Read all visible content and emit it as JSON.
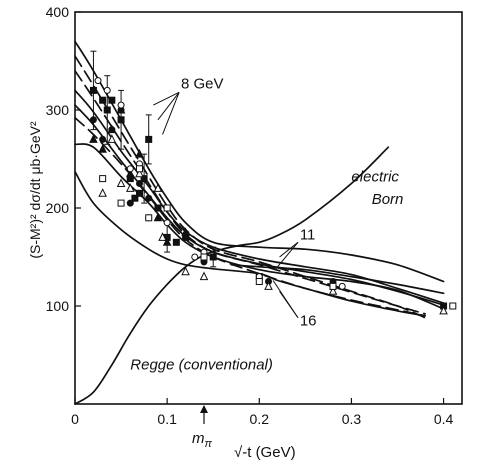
{
  "chart_data": {
    "type": "line",
    "title": "",
    "xlabel": "√-t (GeV)",
    "ylabel": "(S-M²)² dσ/dt  μb·GeV²",
    "xlim": [
      0,
      0.42
    ],
    "ylim": [
      0,
      400
    ],
    "x_ticks": [
      {
        "value": 0,
        "label": "0"
      },
      {
        "value": 0.1,
        "label": "0.1"
      },
      {
        "value": 0.2,
        "label": "0.2"
      },
      {
        "value": 0.3,
        "label": "0.3"
      },
      {
        "value": 0.4,
        "label": "0.4"
      }
    ],
    "y_ticks": [
      {
        "value": 100,
        "label": "100"
      },
      {
        "value": 200,
        "label": "200"
      },
      {
        "value": 300,
        "label": "300"
      },
      {
        "value": 400,
        "label": "400"
      }
    ],
    "grid": false,
    "mpi_marker": {
      "x": 0.14,
      "label": "m",
      "subscript": "π"
    },
    "annotations": [
      {
        "text": "8 GeV",
        "x": 0.115,
        "y": 322
      },
      {
        "text": "11",
        "x": 0.244,
        "y": 168
      },
      {
        "text": "16",
        "x": 0.244,
        "y": 80
      },
      {
        "text": "electric",
        "x": 0.3,
        "y": 227
      },
      {
        "text": "Born",
        "x": 0.322,
        "y": 204
      },
      {
        "text": "Regge  (conventional)",
        "x": 0.06,
        "y": 35
      }
    ],
    "series": [
      {
        "style": "solid",
        "x": [
          0,
          0.02,
          0.05,
          0.08,
          0.1,
          0.12,
          0.15,
          0.2,
          0.25,
          0.3,
          0.35,
          0.4
        ],
        "y": [
          370,
          340,
          290,
          240,
          210,
          185,
          165,
          160,
          158,
          152,
          142,
          125
        ]
      },
      {
        "style": "dashed",
        "x": [
          0,
          0.02,
          0.05,
          0.08,
          0.1,
          0.12,
          0.15,
          0.2,
          0.25,
          0.3,
          0.35,
          0.38
        ],
        "y": [
          355,
          325,
          278,
          232,
          202,
          178,
          158,
          145,
          130,
          115,
          100,
          88
        ]
      },
      {
        "style": "dashed",
        "x": [
          0,
          0.02,
          0.05,
          0.08,
          0.1,
          0.12,
          0.15,
          0.2,
          0.25,
          0.3,
          0.35,
          0.38
        ],
        "y": [
          340,
          312,
          268,
          225,
          196,
          173,
          155,
          142,
          128,
          114,
          100,
          92
        ]
      },
      {
        "style": "solid",
        "x": [
          0,
          0.02,
          0.05,
          0.08,
          0.1,
          0.12,
          0.15,
          0.2,
          0.25,
          0.3,
          0.35,
          0.4
        ],
        "y": [
          320,
          298,
          258,
          222,
          196,
          176,
          160,
          148,
          140,
          132,
          118,
          103
        ]
      },
      {
        "style": "solid",
        "x": [
          0,
          0.02,
          0.05,
          0.08,
          0.1,
          0.12,
          0.15,
          0.2,
          0.25,
          0.3,
          0.35,
          0.4
        ],
        "y": [
          305,
          285,
          248,
          213,
          190,
          171,
          155,
          143,
          135,
          127,
          115,
          101
        ]
      },
      {
        "style": "dashed",
        "x": [
          0,
          0.02,
          0.05,
          0.08,
          0.1,
          0.12,
          0.15,
          0.2,
          0.25,
          0.3,
          0.35,
          0.38
        ],
        "y": [
          292,
          275,
          245,
          212,
          188,
          168,
          150,
          133,
          118,
          106,
          96,
          90
        ]
      },
      {
        "style": "solid",
        "x": [
          0,
          0.02,
          0.05,
          0.08,
          0.1,
          0.12,
          0.15,
          0.2,
          0.25,
          0.3,
          0.35,
          0.4
        ],
        "y": [
          265,
          262,
          232,
          205,
          183,
          165,
          150,
          137,
          130,
          125,
          116,
          97
        ]
      },
      {
        "style": "solid",
        "x": [
          0,
          0.02,
          0.05,
          0.08,
          0.1,
          0.12,
          0.15,
          0.2,
          0.22,
          0.25,
          0.3,
          0.35,
          0.38
        ],
        "y": [
          237,
          205,
          178,
          158,
          148,
          142,
          138,
          133,
          126,
          118,
          105,
          95,
          90
        ]
      },
      {
        "style": "solid",
        "x": [
          0.17,
          0.2,
          0.25,
          0.3,
          0.35,
          0.4
        ],
        "y": [
          142,
          140,
          137,
          130,
          122,
          113
        ]
      },
      {
        "style": "solid",
        "x": [
          0,
          0.02,
          0.04,
          0.06,
          0.08,
          0.1,
          0.12,
          0.14,
          0.16,
          0.18,
          0.2,
          0.22,
          0.25,
          0.3,
          0.34
        ],
        "y": [
          0,
          12,
          40,
          72,
          100,
          122,
          140,
          152,
          158,
          162,
          165,
          172,
          188,
          225,
          262
        ]
      }
    ],
    "points": [
      {
        "marker": "filled-square",
        "x": [
          0.02,
          0.03,
          0.035,
          0.04,
          0.05,
          0.06,
          0.065,
          0.07,
          0.075,
          0.08,
          0.09,
          0.1,
          0.11,
          0.12,
          0.15,
          0.2,
          0.28,
          0.4
        ],
        "y": [
          320,
          310,
          300,
          310,
          290,
          230,
          210,
          215,
          230,
          270,
          200,
          170,
          165,
          170,
          150,
          130,
          120,
          100
        ]
      },
      {
        "marker": "filled-circle",
        "x": [
          0.02,
          0.03,
          0.04,
          0.05,
          0.06,
          0.07,
          0.08,
          0.09,
          0.14,
          0.21,
          0.28
        ],
        "y": [
          290,
          270,
          280,
          300,
          205,
          225,
          210,
          200,
          145,
          125,
          125
        ]
      },
      {
        "marker": "filled-triangle",
        "x": [
          0.02,
          0.03,
          0.04,
          0.05,
          0.06,
          0.07,
          0.09,
          0.1,
          0.12
        ],
        "y": [
          270,
          260,
          280,
          300,
          235,
          255,
          190,
          165,
          175
        ]
      },
      {
        "marker": "open-circle",
        "x": [
          0.025,
          0.035,
          0.05,
          0.06,
          0.07,
          0.08,
          0.1,
          0.13,
          0.14,
          0.2,
          0.29,
          0.41
        ],
        "y": [
          330,
          320,
          305,
          240,
          245,
          190,
          185,
          150,
          155,
          130,
          120,
          100
        ]
      },
      {
        "marker": "open-triangle",
        "x": [
          0.03,
          0.04,
          0.05,
          0.06,
          0.07,
          0.09,
          0.095,
          0.12,
          0.14,
          0.21,
          0.28,
          0.4
        ],
        "y": [
          215,
          270,
          225,
          220,
          235,
          220,
          170,
          135,
          130,
          120,
          115,
          95
        ]
      },
      {
        "marker": "open-square",
        "x": [
          0.03,
          0.05,
          0.07,
          0.08,
          0.1,
          0.14,
          0.2,
          0.28,
          0.41
        ],
        "y": [
          230,
          205,
          240,
          190,
          200,
          150,
          125,
          120,
          100
        ]
      }
    ]
  }
}
